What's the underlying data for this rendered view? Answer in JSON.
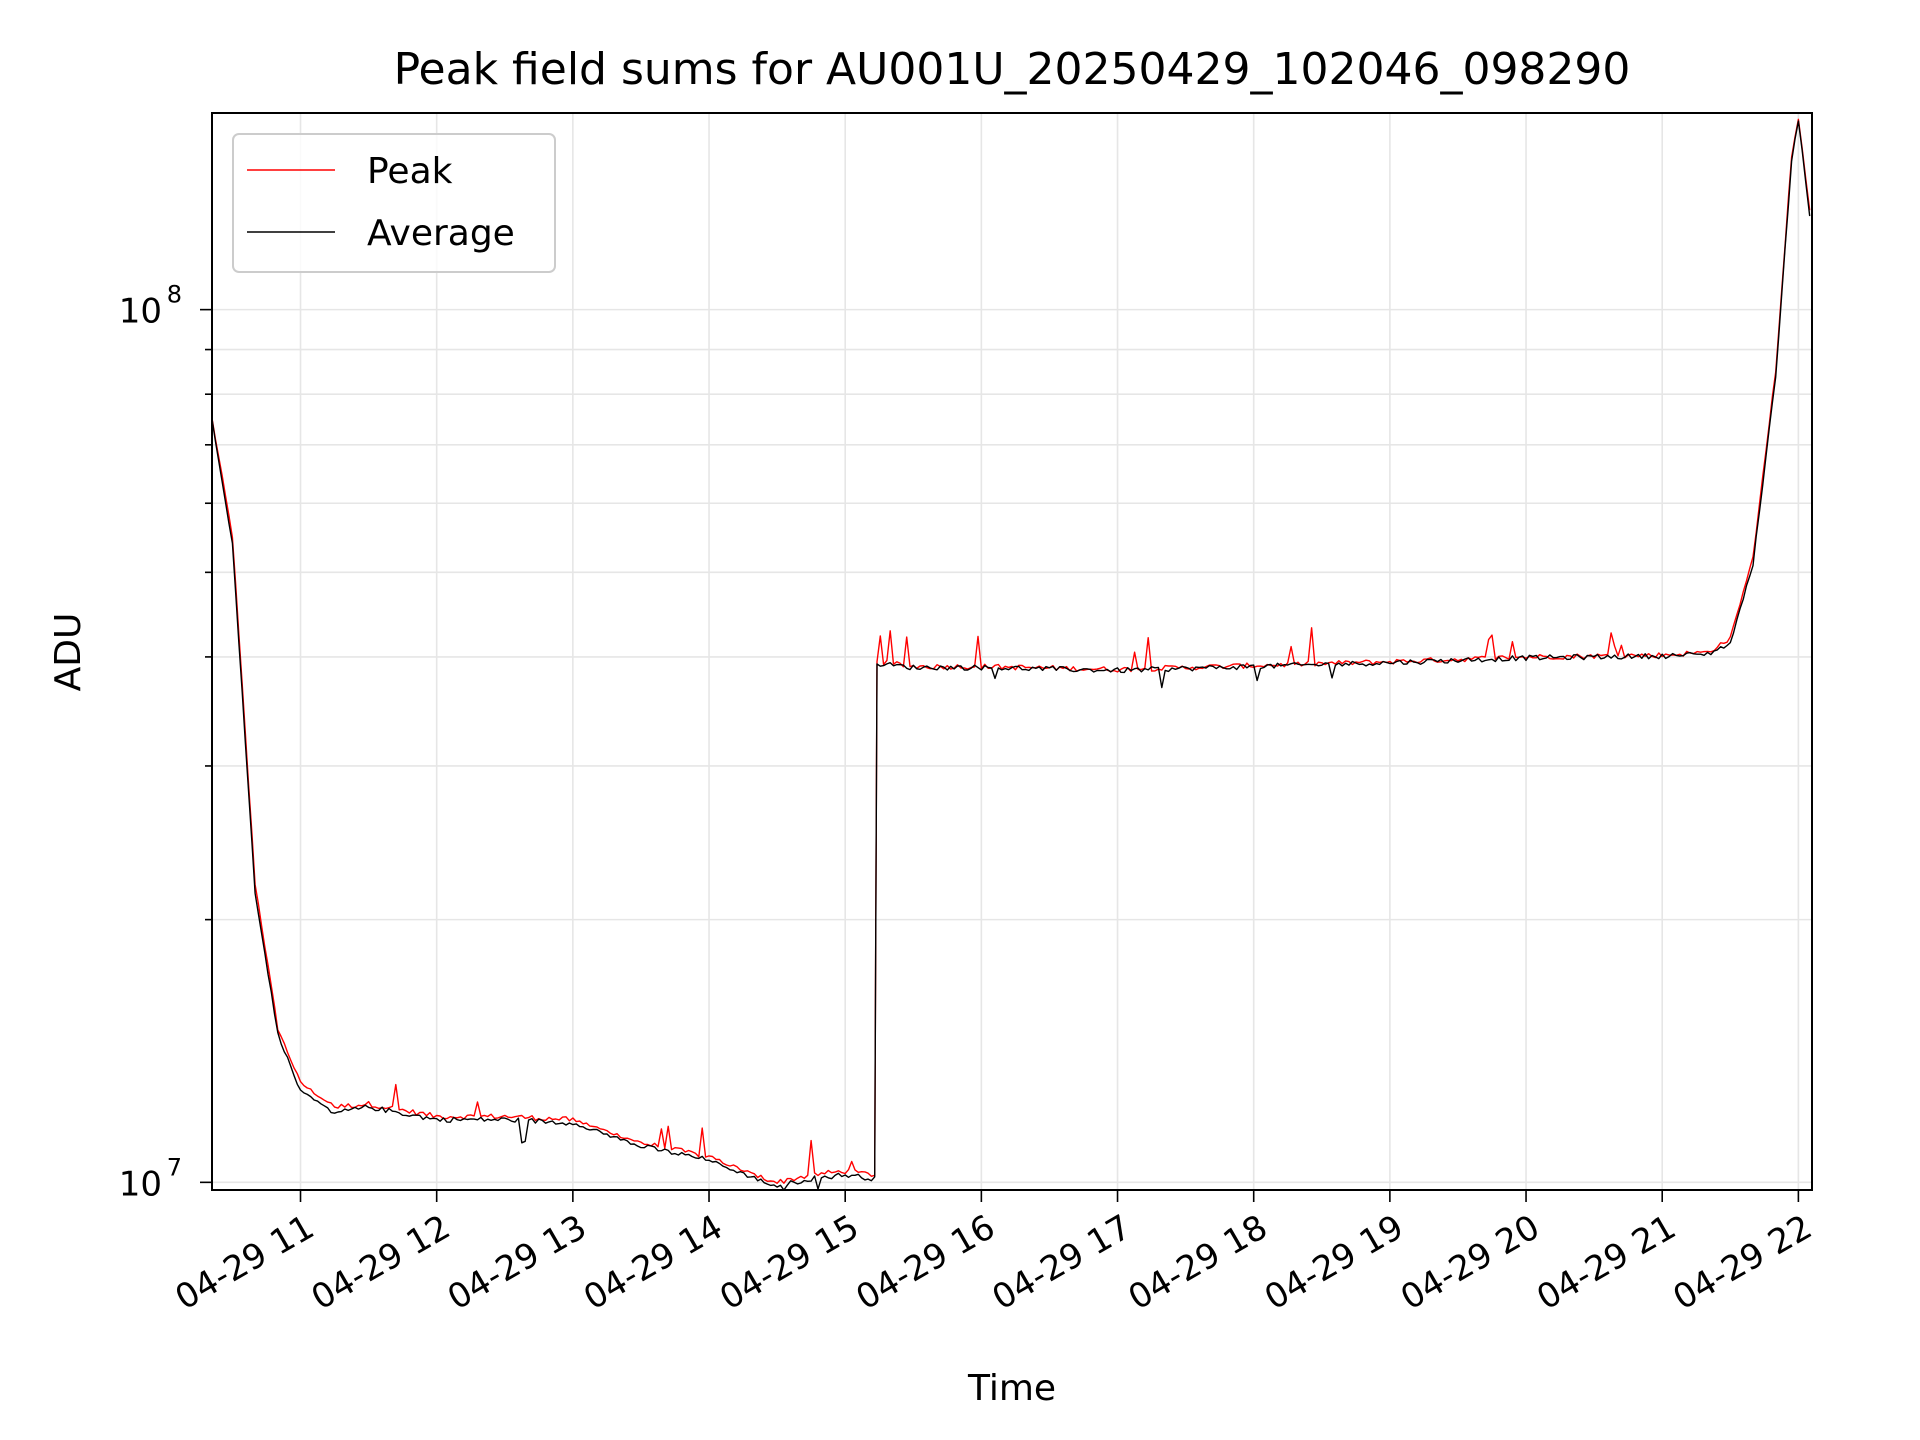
{
  "chart_data": {
    "type": "line",
    "title": "Peak field sums for AU001U_20250429_102046_098290",
    "xlabel": "Time",
    "ylabel": "ADU",
    "yscale": "log",
    "grid": true,
    "legend_position": "top-left",
    "xlim": [
      "2025-04-29 10:21",
      "2025-04-29 22:06"
    ],
    "ylim": [
      9800000,
      168000000
    ],
    "x_ticks": [
      "04-29 11",
      "04-29 12",
      "04-29 13",
      "04-29 14",
      "04-29 15",
      "04-29 16",
      "04-29 17",
      "04-29 18",
      "04-29 19",
      "04-29 20",
      "04-29 21",
      "04-29 22"
    ],
    "y_ticks": [
      {
        "label_base": "10",
        "label_exp": "7",
        "value": 10000000
      },
      {
        "label_base": "10",
        "label_exp": "8",
        "value": 100000000
      }
    ],
    "series": [
      {
        "name": "Peak",
        "color": "#ff0000",
        "x": [
          "2025-04-29 10:21",
          "2025-04-29 10:30",
          "2025-04-29 10:40",
          "2025-04-29 10:50",
          "2025-04-29 11:00",
          "2025-04-29 11:15",
          "2025-04-29 11:30",
          "2025-04-29 12:00",
          "2025-04-29 12:30",
          "2025-04-29 13:00",
          "2025-04-29 13:30",
          "2025-04-29 14:00",
          "2025-04-29 14:20",
          "2025-04-29 14:30",
          "2025-04-29 14:45",
          "2025-04-29 15:00",
          "2025-04-29 15:13",
          "2025-04-29 15:14",
          "2025-04-29 15:30",
          "2025-04-29 16:00",
          "2025-04-29 17:00",
          "2025-04-29 18:00",
          "2025-04-29 19:00",
          "2025-04-29 20:00",
          "2025-04-29 21:00",
          "2025-04-29 21:20",
          "2025-04-29 21:30",
          "2025-04-29 21:40",
          "2025-04-29 21:50",
          "2025-04-29 21:57",
          "2025-04-29 22:00",
          "2025-04-29 22:05"
        ],
        "values": [
          75000000,
          55000000,
          22000000,
          15000000,
          13000000,
          12200000,
          12300000,
          11900000,
          11900000,
          11800000,
          11100000,
          10700000,
          10200000,
          10000000,
          10200000,
          10300000,
          10200000,
          39500000,
          39000000,
          39000000,
          38700000,
          39100000,
          39500000,
          40000000,
          40200000,
          40500000,
          42000000,
          52000000,
          85000000,
          150000000,
          165000000,
          130000000
        ]
      },
      {
        "name": "Average",
        "color": "#000000",
        "x": [
          "2025-04-29 10:21",
          "2025-04-29 10:30",
          "2025-04-29 10:40",
          "2025-04-29 10:50",
          "2025-04-29 11:00",
          "2025-04-29 11:15",
          "2025-04-29 11:30",
          "2025-04-29 12:00",
          "2025-04-29 12:30",
          "2025-04-29 13:00",
          "2025-04-29 13:30",
          "2025-04-29 14:00",
          "2025-04-29 14:20",
          "2025-04-29 14:30",
          "2025-04-29 14:45",
          "2025-04-29 15:00",
          "2025-04-29 15:13",
          "2025-04-29 15:14",
          "2025-04-29 15:30",
          "2025-04-29 16:00",
          "2025-04-29 17:00",
          "2025-04-29 18:00",
          "2025-04-29 19:00",
          "2025-04-29 20:00",
          "2025-04-29 21:00",
          "2025-04-29 21:20",
          "2025-04-29 21:30",
          "2025-04-29 21:40",
          "2025-04-29 21:50",
          "2025-04-29 21:57",
          "2025-04-29 22:00",
          "2025-04-29 22:05"
        ],
        "values": [
          75000000,
          54000000,
          21500000,
          14800000,
          12700000,
          12000000,
          12200000,
          11800000,
          11800000,
          11700000,
          11000000,
          10600000,
          10100000,
          9900000,
          10100000,
          10200000,
          10100000,
          39300000,
          38900000,
          38900000,
          38600000,
          39000000,
          39400000,
          39900000,
          40100000,
          40300000,
          41500000,
          51000000,
          84000000,
          148000000,
          165000000,
          128000000
        ]
      }
    ]
  }
}
